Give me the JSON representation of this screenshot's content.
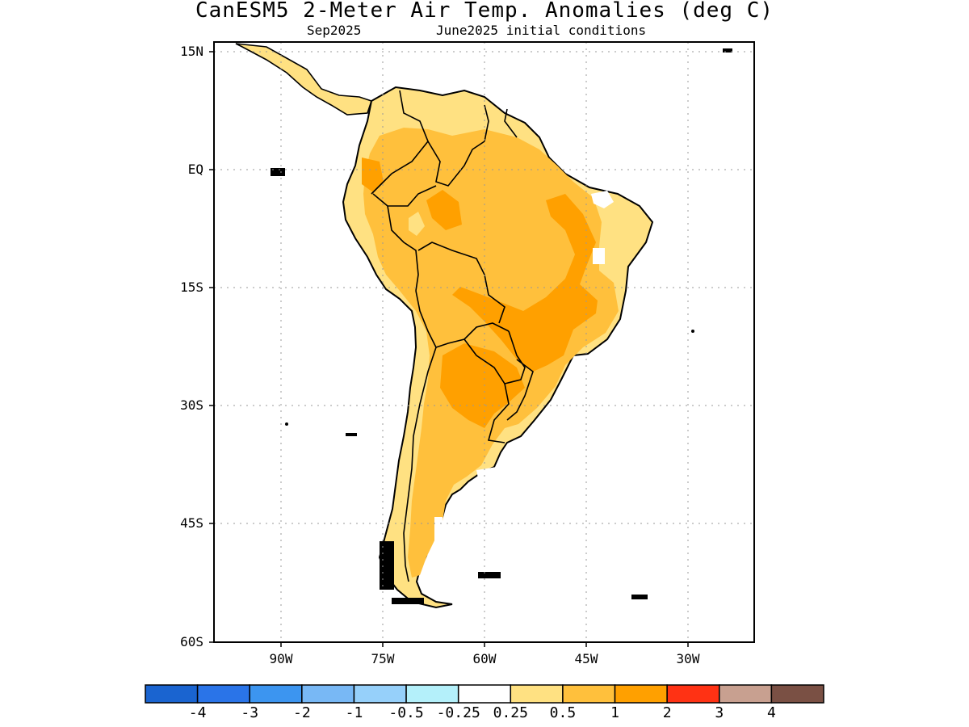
{
  "title": "CanESM5 2-Meter Air Temp. Anomalies (deg C)",
  "subtitle_left": "Sep2025",
  "subtitle_right": "June2025 initial conditions",
  "lat_labels": [
    "15N",
    "EQ",
    "15S",
    "30S",
    "45S",
    "60S"
  ],
  "lon_labels": [
    "90W",
    "75W",
    "60W",
    "45W",
    "30W"
  ],
  "colorbar": {
    "colors": [
      "#1a64d0",
      "#2a74e8",
      "#3c95f0",
      "#78b8f5",
      "#96d0fa",
      "#b4f0fa",
      "#ffffff",
      "#ffe182",
      "#ffc03c",
      "#ffa000",
      "#ff3214",
      "#c8a090",
      "#7a5044"
    ],
    "labels": [
      "-4",
      "-3",
      "-2",
      "-1",
      "-0.5",
      "-0.25",
      "0.25",
      "0.5",
      "1",
      "2",
      "3",
      "4"
    ]
  }
}
